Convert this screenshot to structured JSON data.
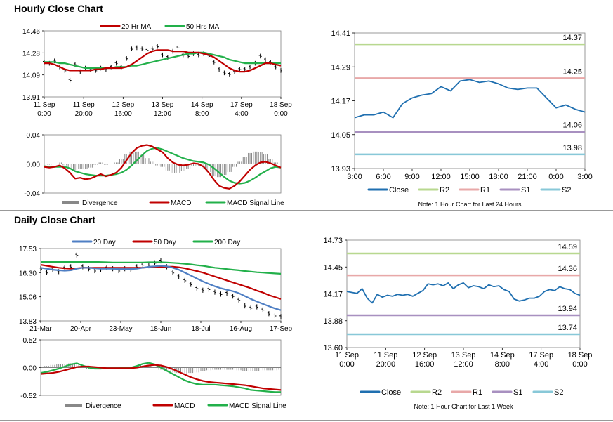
{
  "sections": {
    "hourly_title": "Hourly Close Chart",
    "daily_title": "Daily Close Chart"
  },
  "colors": {
    "ma_red": "#c00000",
    "ma_green": "#22b04a",
    "ma_blue": "#4f7fc4",
    "divergence": "#888888",
    "close_line": "#1f6fb0",
    "r2": "#b8d88f",
    "r1": "#e8a8a8",
    "s1": "#a890c0",
    "s2": "#88c8d8",
    "axis": "#000000"
  },
  "chart_data": [
    {
      "id": "hourly-price",
      "type": "line",
      "title": "",
      "legend": [
        "20 Hr MA",
        "50 Hrs MA"
      ],
      "ylim": [
        13.91,
        14.46
      ],
      "yticks": [
        "14.46",
        "14.28",
        "14.09",
        "13.91"
      ],
      "xticks": [
        [
          "11 Sep",
          "0:00"
        ],
        [
          "11 Sep",
          "20:00"
        ],
        [
          "12 Sep",
          "16:00"
        ],
        [
          "13 Sep",
          "12:00"
        ],
        [
          "14 Sep",
          "8:00"
        ],
        [
          "17 Sep",
          "4:00"
        ],
        [
          "18 Sep",
          "0:00"
        ]
      ],
      "series": [
        {
          "name": "Price",
          "values": [
            14.2,
            14.19,
            14.21,
            14.16,
            14.13,
            14.05,
            14.18,
            14.12,
            14.15,
            14.14,
            14.13,
            14.15,
            14.14,
            14.16,
            14.19,
            14.16,
            14.23,
            14.31,
            14.32,
            14.31,
            14.3,
            14.31,
            14.33,
            14.26,
            14.24,
            14.29,
            14.32,
            14.26,
            14.25,
            14.27,
            14.26,
            14.27,
            14.25,
            14.2,
            14.14,
            14.11,
            14.1,
            14.12,
            14.14,
            14.14,
            14.16,
            14.19,
            14.25,
            14.22,
            14.2,
            14.16,
            14.13
          ]
        },
        {
          "name": "20 Hr MA",
          "values": [
            14.19,
            14.19,
            14.18,
            14.16,
            14.14,
            14.13,
            14.13,
            14.13,
            14.13,
            14.13,
            14.14,
            14.14,
            14.15,
            14.15,
            14.15,
            14.15,
            14.16,
            14.18,
            14.21,
            14.24,
            14.27,
            14.29,
            14.3,
            14.3,
            14.3,
            14.29,
            14.29,
            14.29,
            14.28,
            14.28,
            14.28,
            14.27,
            14.26,
            14.24,
            14.21,
            14.18,
            14.15,
            14.13,
            14.12,
            14.12,
            14.13,
            14.15,
            14.17,
            14.19,
            14.19,
            14.18,
            14.17
          ]
        },
        {
          "name": "50 Hrs MA",
          "values": [
            14.2,
            14.2,
            14.2,
            14.19,
            14.19,
            14.18,
            14.17,
            14.16,
            14.15,
            14.15,
            14.15,
            14.15,
            14.15,
            14.15,
            14.16,
            14.16,
            14.16,
            14.17,
            14.17,
            14.18,
            14.19,
            14.2,
            14.21,
            14.22,
            14.23,
            14.24,
            14.25,
            14.26,
            14.27,
            14.27,
            14.28,
            14.28,
            14.27,
            14.26,
            14.25,
            14.24,
            14.22,
            14.21,
            14.2,
            14.19,
            14.19,
            14.19,
            14.19,
            14.19,
            14.19,
            14.19,
            14.19
          ]
        }
      ]
    },
    {
      "id": "hourly-macd",
      "type": "line",
      "legend": [
        "Divergence",
        "MACD",
        "MACD Signal Line"
      ],
      "ylim": [
        -0.04,
        0.04
      ],
      "yticks": [
        "0.04",
        "0.00",
        "-0.04"
      ],
      "series": [
        {
          "name": "MACD",
          "values": [
            -0.004,
            -0.005,
            -0.004,
            -0.002,
            -0.006,
            -0.012,
            -0.02,
            -0.019,
            -0.021,
            -0.02,
            -0.017,
            -0.014,
            -0.017,
            -0.015,
            -0.012,
            -0.005,
            0.005,
            0.015,
            0.022,
            0.025,
            0.026,
            0.024,
            0.02,
            0.016,
            0.008,
            0.002,
            -0.001,
            -0.002,
            -0.001,
            0.001,
            0.0,
            -0.004,
            -0.012,
            -0.022,
            -0.03,
            -0.033,
            -0.034,
            -0.03,
            -0.024,
            -0.016,
            -0.008,
            -0.002,
            0.002,
            0.003,
            0.001,
            -0.002,
            -0.005
          ]
        },
        {
          "name": "MACD Signal Line",
          "values": [
            -0.003,
            -0.004,
            -0.004,
            -0.004,
            -0.004,
            -0.006,
            -0.01,
            -0.012,
            -0.014,
            -0.015,
            -0.016,
            -0.016,
            -0.016,
            -0.015,
            -0.014,
            -0.012,
            -0.008,
            -0.002,
            0.005,
            0.012,
            0.018,
            0.021,
            0.022,
            0.02,
            0.017,
            0.014,
            0.011,
            0.008,
            0.006,
            0.004,
            0.003,
            0.002,
            -0.001,
            -0.006,
            -0.012,
            -0.018,
            -0.023,
            -0.026,
            -0.027,
            -0.026,
            -0.023,
            -0.019,
            -0.014,
            -0.01,
            -0.006,
            -0.004,
            -0.005
          ]
        },
        {
          "name": "Divergence",
          "values": [
            -0.001,
            -0.001,
            0.0,
            0.002,
            -0.002,
            -0.006,
            -0.01,
            -0.007,
            -0.007,
            -0.005,
            -0.001,
            0.002,
            -0.001,
            0.0,
            0.002,
            0.007,
            0.013,
            0.017,
            0.017,
            0.013,
            0.008,
            0.003,
            -0.002,
            -0.004,
            -0.009,
            -0.012,
            -0.012,
            -0.01,
            -0.007,
            -0.003,
            -0.003,
            -0.006,
            -0.011,
            -0.016,
            -0.018,
            -0.015,
            -0.011,
            -0.004,
            0.003,
            0.01,
            0.015,
            0.017,
            0.016,
            0.013,
            0.007,
            0.002,
            0.0
          ]
        }
      ]
    },
    {
      "id": "hourly-pivot",
      "type": "line",
      "ylim": [
        13.93,
        14.41
      ],
      "yticks": [
        "14.41",
        "14.29",
        "14.17",
        "14.05",
        "13.93"
      ],
      "xticks": [
        "3:00",
        "6:00",
        "9:00",
        "12:00",
        "15:00",
        "18:00",
        "21:00",
        "0:00",
        "3:00"
      ],
      "legend": [
        "Close",
        "R2",
        "R1",
        "S1",
        "S2"
      ],
      "levels": [
        {
          "name": "R2",
          "value": 14.37,
          "label": "14.37"
        },
        {
          "name": "R1",
          "value": 14.25,
          "label": "14.25"
        },
        {
          "name": "S1",
          "value": 14.06,
          "label": "14.06"
        },
        {
          "name": "S2",
          "value": 13.98,
          "label": "13.98"
        }
      ],
      "series": [
        {
          "name": "Close",
          "values": [
            14.11,
            14.12,
            14.12,
            14.13,
            14.11,
            14.16,
            14.18,
            14.19,
            14.195,
            14.22,
            14.205,
            14.24,
            14.245,
            14.235,
            14.24,
            14.23,
            14.215,
            14.21,
            14.215,
            14.215,
            14.18,
            14.145,
            14.155,
            14.14,
            14.13
          ]
        }
      ],
      "note": "Note: 1 Hour Chart for Last 24 Hours"
    },
    {
      "id": "daily-price",
      "type": "line",
      "legend": [
        "20 Day",
        "50 Day",
        "200 Day"
      ],
      "ylim": [
        13.83,
        17.53
      ],
      "yticks": [
        "17.53",
        "16.30",
        "15.06",
        "13.83"
      ],
      "xticks": [
        "21-Mar",
        "20-Apr",
        "23-May",
        "18-Jun",
        "18-Jul",
        "16-Aug",
        "17-Sep"
      ],
      "series": [
        {
          "name": "Price",
          "values": [
            16.5,
            16.3,
            16.45,
            16.35,
            16.55,
            16.6,
            17.2,
            16.6,
            16.5,
            16.4,
            16.45,
            16.55,
            16.5,
            16.4,
            16.5,
            16.45,
            16.6,
            16.7,
            16.65,
            16.8,
            16.9,
            16.6,
            16.3,
            16.1,
            15.9,
            15.7,
            15.5,
            15.4,
            15.45,
            15.3,
            15.2,
            15.25,
            15.1,
            14.9,
            14.6,
            14.5,
            14.55,
            14.4,
            14.2,
            14.1,
            14.05
          ]
        },
        {
          "name": "20 Day",
          "values": [
            16.55,
            16.5,
            16.45,
            16.42,
            16.4,
            16.42,
            16.5,
            16.55,
            16.55,
            16.52,
            16.5,
            16.5,
            16.5,
            16.48,
            16.48,
            16.48,
            16.5,
            16.55,
            16.6,
            16.62,
            16.65,
            16.62,
            16.55,
            16.45,
            16.3,
            16.15,
            16.0,
            15.85,
            15.72,
            15.6,
            15.5,
            15.42,
            15.35,
            15.25,
            15.1,
            14.95,
            14.82,
            14.7,
            14.58,
            14.47,
            14.38
          ]
        },
        {
          "name": "50 Day",
          "values": [
            16.7,
            16.65,
            16.6,
            16.55,
            16.52,
            16.5,
            16.52,
            16.55,
            16.55,
            16.55,
            16.55,
            16.55,
            16.55,
            16.55,
            16.55,
            16.55,
            16.55,
            16.55,
            16.57,
            16.58,
            16.6,
            16.6,
            16.6,
            16.57,
            16.52,
            16.45,
            16.38,
            16.3,
            16.2,
            16.1,
            16.0,
            15.9,
            15.8,
            15.7,
            15.6,
            15.5,
            15.38,
            15.28,
            15.15,
            15.05,
            14.95
          ]
        },
        {
          "name": "200 Day",
          "values": [
            16.85,
            16.85,
            16.85,
            16.85,
            16.85,
            16.85,
            16.85,
            16.85,
            16.85,
            16.85,
            16.84,
            16.83,
            16.82,
            16.82,
            16.82,
            16.82,
            16.82,
            16.82,
            16.83,
            16.83,
            16.83,
            16.82,
            16.8,
            16.78,
            16.75,
            16.72,
            16.68,
            16.65,
            16.6,
            16.55,
            16.52,
            16.48,
            16.45,
            16.42,
            16.38,
            16.35,
            16.32,
            16.3,
            16.28,
            16.26,
            16.24
          ]
        }
      ]
    },
    {
      "id": "daily-macd",
      "type": "line",
      "legend": [
        "Divergence",
        "MACD",
        "MACD Signal Line"
      ],
      "ylim": [
        -0.52,
        0.52
      ],
      "yticks": [
        "0.52",
        "0.00",
        "-0.52"
      ],
      "series": [
        {
          "name": "MACD",
          "values": [
            -0.1,
            -0.08,
            -0.05,
            -0.02,
            0.02,
            0.06,
            0.08,
            0.04,
            0.0,
            -0.02,
            -0.02,
            -0.01,
            -0.01,
            -0.01,
            0.0,
            0.0,
            0.03,
            0.07,
            0.09,
            0.06,
            0.0,
            -0.06,
            -0.12,
            -0.18,
            -0.24,
            -0.28,
            -0.31,
            -0.32,
            -0.32,
            -0.32,
            -0.33,
            -0.34,
            -0.35,
            -0.37,
            -0.39,
            -0.42,
            -0.43,
            -0.44,
            -0.45,
            -0.46,
            -0.46
          ]
        },
        {
          "name": "MACD Signal Line",
          "values": [
            -0.12,
            -0.11,
            -0.1,
            -0.08,
            -0.05,
            -0.02,
            0.01,
            0.02,
            0.02,
            0.01,
            0.0,
            -0.01,
            -0.01,
            -0.01,
            -0.01,
            -0.01,
            0.0,
            0.02,
            0.04,
            0.05,
            0.04,
            0.01,
            -0.03,
            -0.08,
            -0.13,
            -0.18,
            -0.22,
            -0.25,
            -0.27,
            -0.28,
            -0.29,
            -0.3,
            -0.31,
            -0.32,
            -0.33,
            -0.35,
            -0.37,
            -0.39,
            -0.4,
            -0.41,
            -0.42
          ]
        },
        {
          "name": "Divergence",
          "values": [
            0.02,
            0.03,
            0.05,
            0.06,
            0.07,
            0.08,
            0.07,
            0.02,
            -0.02,
            -0.03,
            -0.02,
            0.0,
            0.0,
            0.0,
            0.01,
            0.01,
            0.03,
            0.05,
            0.05,
            0.01,
            -0.04,
            -0.07,
            -0.09,
            -0.1,
            -0.11,
            -0.1,
            -0.09,
            -0.07,
            -0.05,
            -0.04,
            -0.04,
            -0.04,
            -0.04,
            -0.05,
            -0.06,
            -0.07,
            -0.06,
            -0.05,
            -0.05,
            -0.05,
            -0.04
          ]
        }
      ]
    },
    {
      "id": "weekly-pivot",
      "type": "line",
      "ylim": [
        13.6,
        14.73
      ],
      "yticks": [
        "14.73",
        "14.45",
        "14.17",
        "13.88",
        "13.60"
      ],
      "xticks": [
        [
          "11 Sep",
          "0:00"
        ],
        [
          "11 Sep",
          "20:00"
        ],
        [
          "12 Sep",
          "16:00"
        ],
        [
          "13 Sep",
          "12:00"
        ],
        [
          "14 Sep",
          "8:00"
        ],
        [
          "17 Sep",
          "4:00"
        ],
        [
          "18 Sep",
          "0:00"
        ]
      ],
      "legend": [
        "Close",
        "R2",
        "R1",
        "S1",
        "S2"
      ],
      "levels": [
        {
          "name": "R2",
          "value": 14.59,
          "label": "14.59"
        },
        {
          "name": "R1",
          "value": 14.36,
          "label": "14.36"
        },
        {
          "name": "S1",
          "value": 13.94,
          "label": "13.94"
        },
        {
          "name": "S2",
          "value": 13.74,
          "label": "13.74"
        }
      ],
      "series": [
        {
          "name": "Close",
          "values": [
            14.19,
            14.18,
            14.17,
            14.22,
            14.12,
            14.07,
            14.16,
            14.13,
            14.15,
            14.14,
            14.16,
            14.15,
            14.16,
            14.14,
            14.17,
            14.2,
            14.27,
            14.26,
            14.27,
            14.25,
            14.28,
            14.22,
            14.26,
            14.28,
            14.23,
            14.25,
            14.24,
            14.22,
            14.26,
            14.24,
            14.25,
            14.21,
            14.19,
            14.11,
            14.09,
            14.1,
            14.12,
            14.12,
            14.14,
            14.19,
            14.21,
            14.2,
            14.24,
            14.22,
            14.21,
            14.17,
            14.15
          ]
        }
      ],
      "note": "Note: 1 Hour Chart for Last 1 Week"
    }
  ]
}
